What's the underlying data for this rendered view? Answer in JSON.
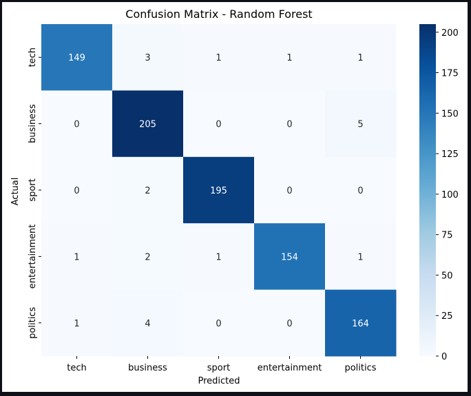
{
  "chart_data": {
    "type": "heatmap",
    "title": "Confusion Matrix - Random Forest",
    "xlabel": "Predicted",
    "ylabel": "Actual",
    "x_categories": [
      "tech",
      "business",
      "sport",
      "entertainment",
      "politics"
    ],
    "y_categories": [
      "tech",
      "business",
      "sport",
      "entertainment",
      "politics"
    ],
    "values": [
      [
        149,
        3,
        1,
        1,
        1
      ],
      [
        0,
        205,
        0,
        0,
        5
      ],
      [
        0,
        2,
        195,
        0,
        0
      ],
      [
        1,
        2,
        1,
        154,
        1
      ],
      [
        1,
        4,
        0,
        0,
        164
      ]
    ],
    "colormap": "Blues",
    "colorbar": {
      "min": 0,
      "max": 205,
      "ticks": [
        0,
        25,
        50,
        75,
        100,
        125,
        150,
        175,
        200
      ]
    },
    "annotation_color_light": "#ffffff",
    "annotation_color_dark": "#262626"
  }
}
